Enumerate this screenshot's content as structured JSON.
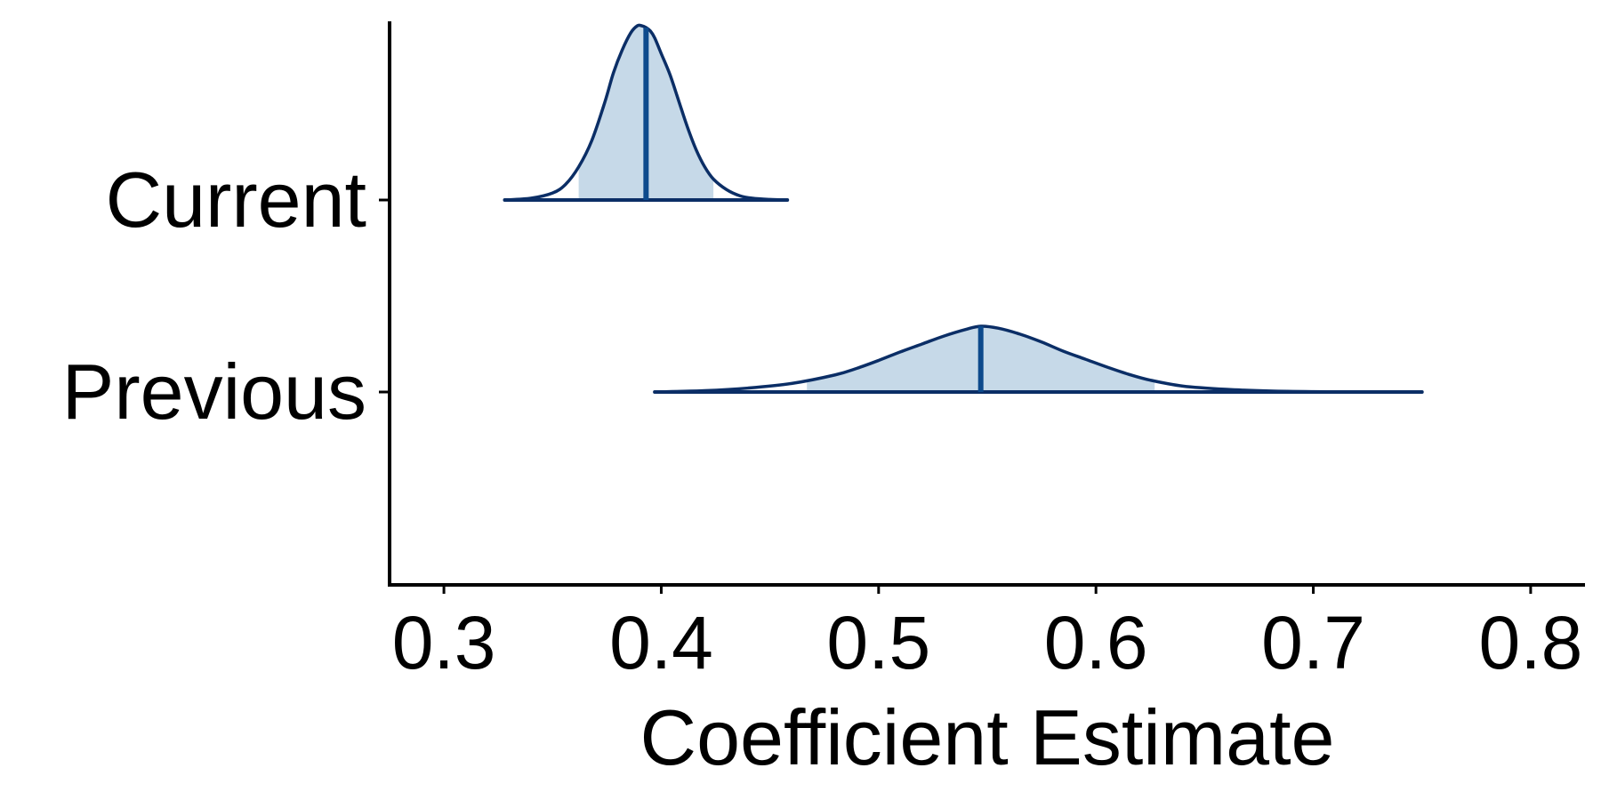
{
  "chart_data": {
    "type": "ridgeline",
    "title": "",
    "xlabel": "Coefficient Estimate",
    "ylabel": "",
    "xlim": [
      0.275,
      0.825
    ],
    "x_ticks": [
      0.3,
      0.4,
      0.5,
      0.6,
      0.7,
      0.8
    ],
    "x_tick_labels": [
      "0.3",
      "0.4",
      "0.5",
      "0.6",
      "0.7",
      "0.8"
    ],
    "categories": [
      "Current",
      "Previous"
    ],
    "grid": false,
    "legend": "none",
    "colors": {
      "fill": "#c6d9e8",
      "outline": "#0b2e66",
      "median_line": "#0d4a8c",
      "axis": "#000000"
    },
    "series": [
      {
        "name": "Current",
        "median": 0.393,
        "range": [
          0.328,
          0.458
        ],
        "interval": [
          0.362,
          0.424
        ],
        "density_x": [
          0.328,
          0.34,
          0.35,
          0.356,
          0.362,
          0.368,
          0.374,
          0.378,
          0.382,
          0.386,
          0.389,
          0.391,
          0.393,
          0.395,
          0.397,
          0.4,
          0.404,
          0.408,
          0.412,
          0.416,
          0.42,
          0.424,
          0.43,
          0.436,
          0.442,
          0.45,
          0.458
        ],
        "density_y": [
          0.0,
          0.01,
          0.04,
          0.09,
          0.19,
          0.34,
          0.56,
          0.73,
          0.86,
          0.96,
          1.0,
          1.0,
          0.99,
          0.97,
          0.93,
          0.84,
          0.72,
          0.57,
          0.42,
          0.29,
          0.19,
          0.12,
          0.06,
          0.025,
          0.01,
          0.003,
          0.0
        ]
      },
      {
        "name": "Previous",
        "median": 0.547,
        "range": [
          0.397,
          0.75
        ],
        "interval": [
          0.467,
          0.627
        ],
        "density_x": [
          0.397,
          0.42,
          0.44,
          0.46,
          0.48,
          0.49,
          0.5,
          0.51,
          0.52,
          0.53,
          0.54,
          0.547,
          0.555,
          0.565,
          0.575,
          0.585,
          0.595,
          0.605,
          0.615,
          0.625,
          0.64,
          0.66,
          0.68,
          0.7,
          0.72,
          0.75
        ],
        "density_y": [
          0.0,
          0.02,
          0.06,
          0.13,
          0.26,
          0.36,
          0.48,
          0.61,
          0.73,
          0.85,
          0.95,
          1.0,
          0.97,
          0.88,
          0.76,
          0.62,
          0.5,
          0.38,
          0.27,
          0.18,
          0.09,
          0.04,
          0.015,
          0.005,
          0.002,
          0.0
        ]
      }
    ]
  }
}
